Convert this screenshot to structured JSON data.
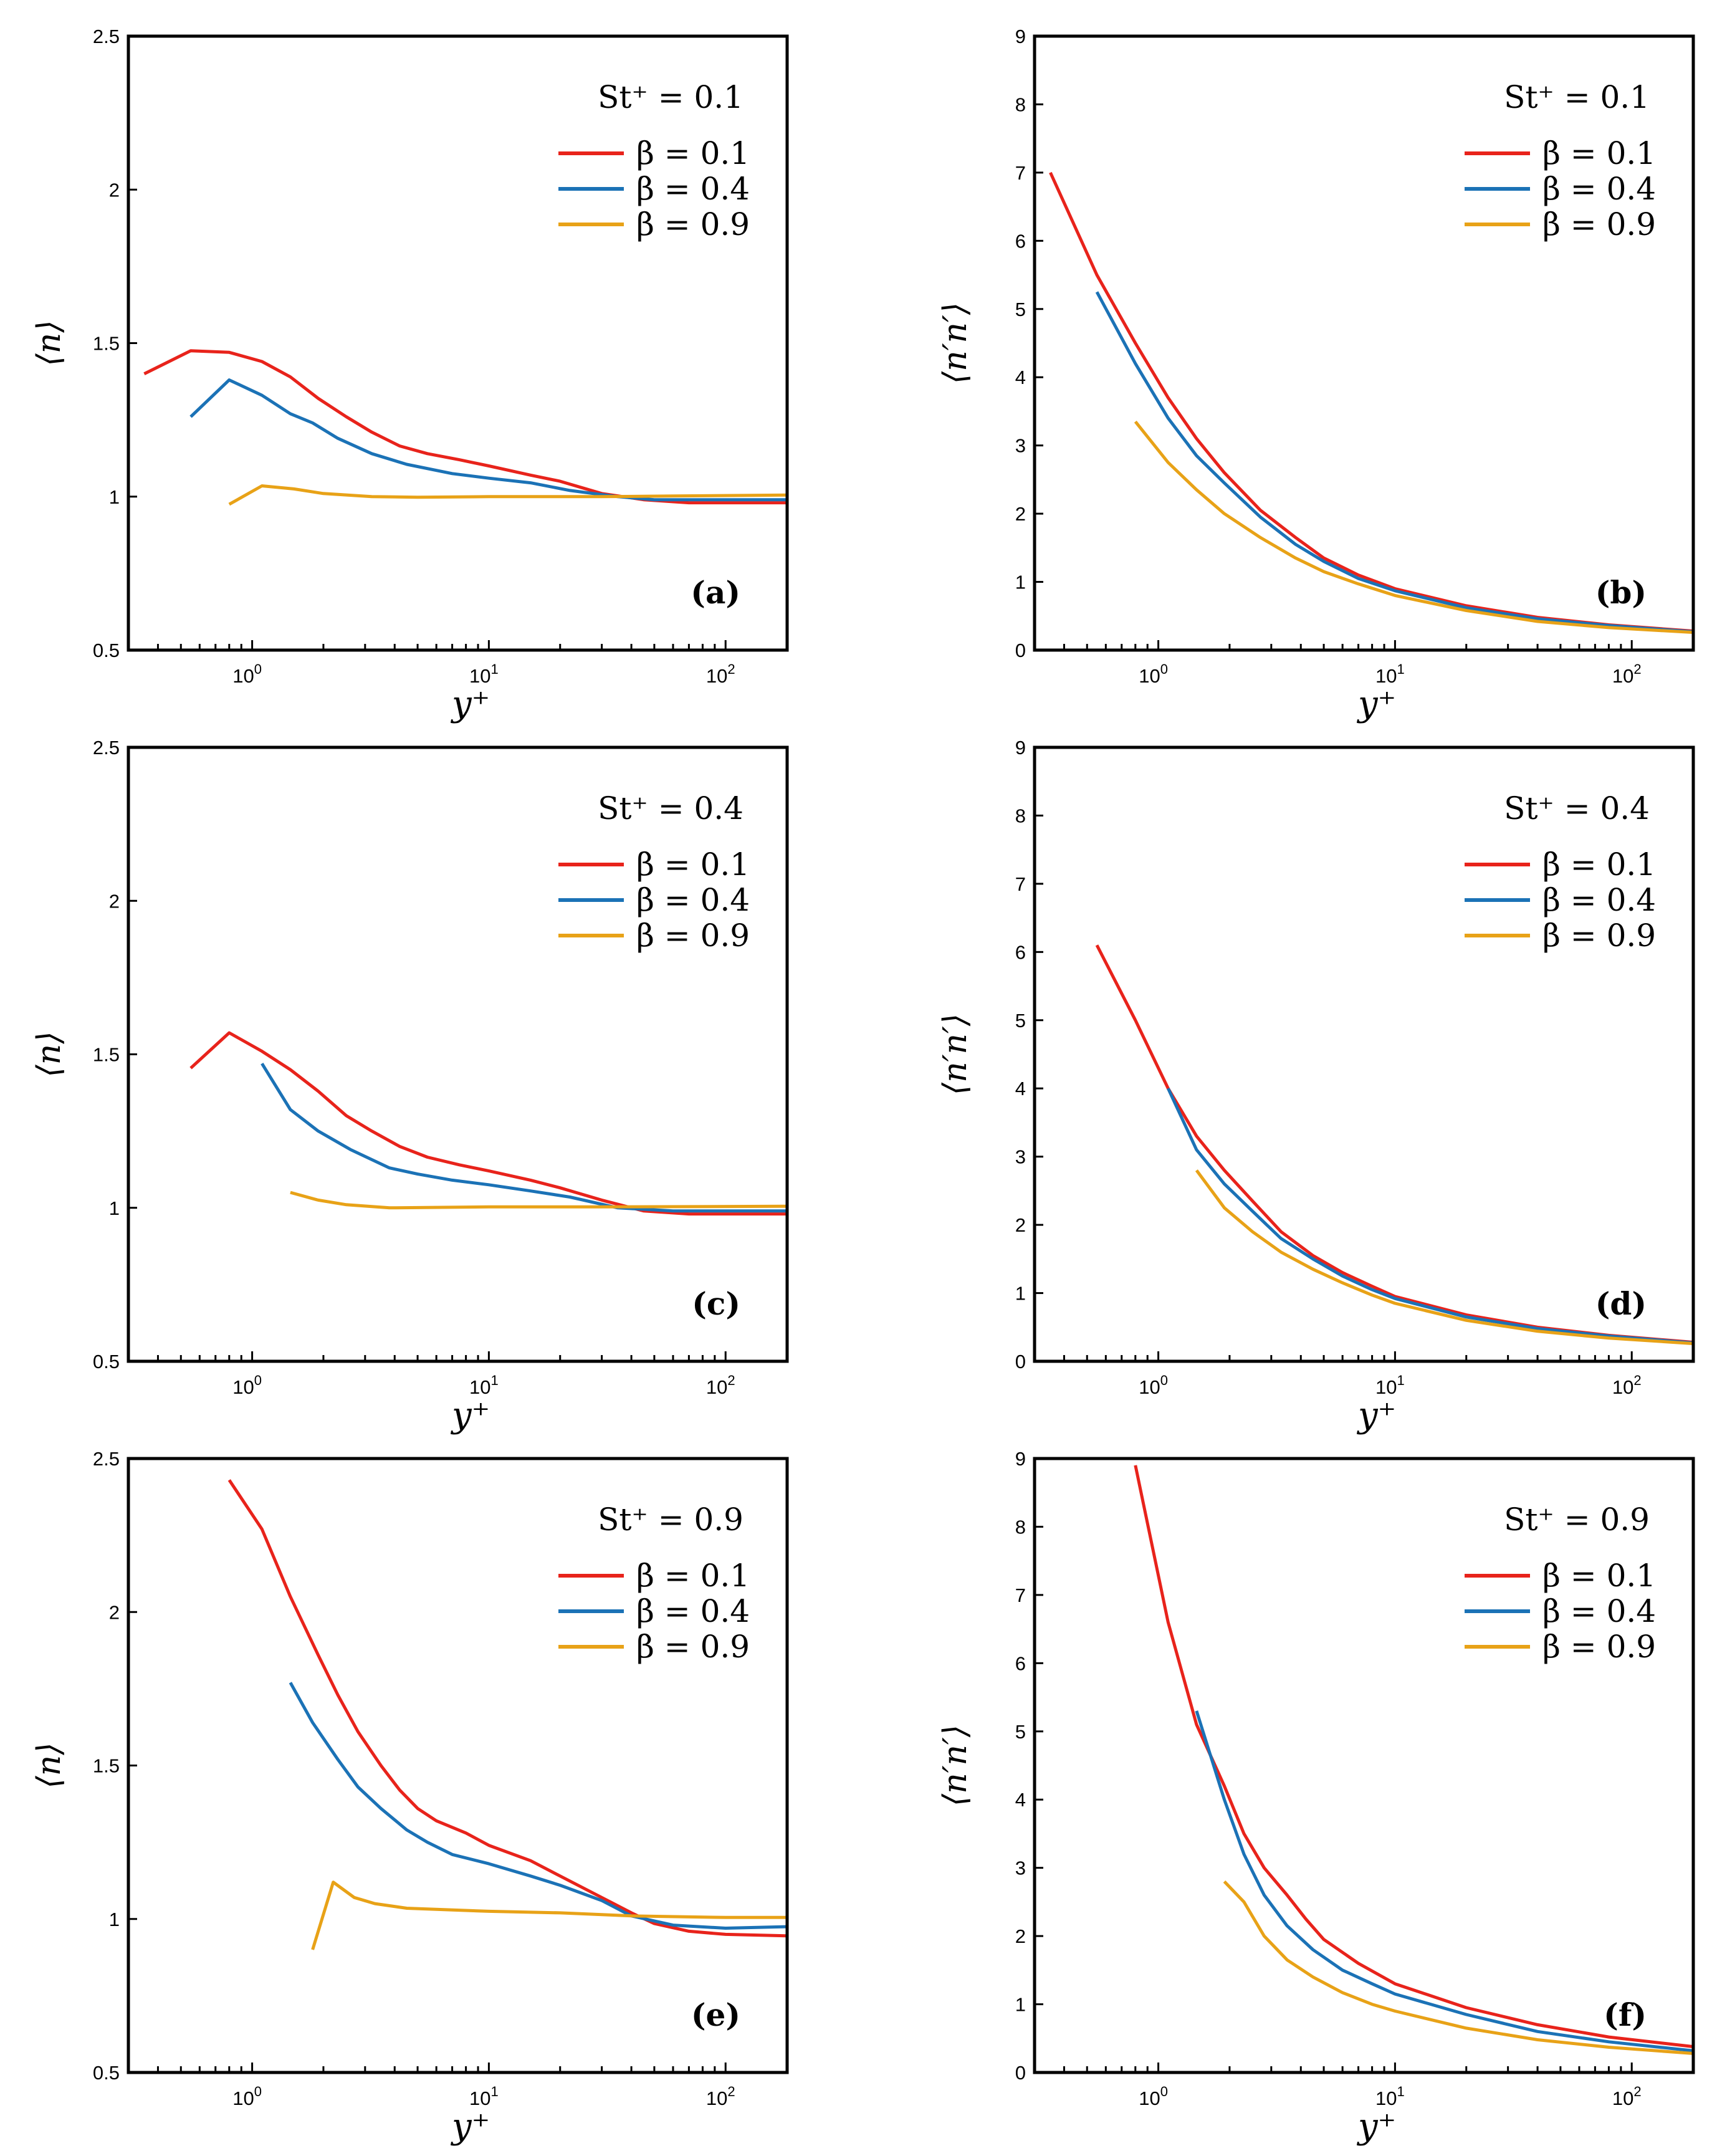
{
  "colors": {
    "beta_0.1": "#e8231b",
    "beta_0.4": "#1b72b6",
    "beta_0.9": "#e8a217"
  },
  "chart_data": [
    {
      "type": "line",
      "panel_label": "(a)",
      "annotation": "St⁺ = 0.1",
      "xlabel": "y⁺",
      "ylabel": "⟨n⟩",
      "xscale": "log",
      "xlim": [
        0.3,
        182
      ],
      "ylim": [
        0.5,
        2.5
      ],
      "yticks": [
        0.5,
        1,
        1.5,
        2,
        2.5
      ],
      "ytick_labels": [
        "0.5",
        "1",
        "1.5",
        "2",
        "2.5"
      ],
      "xticks": [
        1,
        10,
        100
      ],
      "xtick_base": "10",
      "xtick_exponents": [
        "0",
        "1",
        "2"
      ],
      "legend": "top-right",
      "series": [
        {
          "name": "β = 0.1",
          "color_key": "beta_0.1",
          "x": [
            0.35,
            0.55,
            0.8,
            1.1,
            1.45,
            1.9,
            2.5,
            3.2,
            4.2,
            5.5,
            7.5,
            10,
            15,
            20,
            30,
            45,
            70,
            100,
            180
          ],
          "y": [
            1.4,
            1.475,
            1.47,
            1.44,
            1.39,
            1.32,
            1.26,
            1.21,
            1.165,
            1.14,
            1.12,
            1.1,
            1.07,
            1.05,
            1.01,
            0.99,
            0.98,
            0.98,
            0.98
          ]
        },
        {
          "name": "β = 0.4",
          "color_key": "beta_0.4",
          "x": [
            0.55,
            0.8,
            1.1,
            1.45,
            1.8,
            2.3,
            3.2,
            4.5,
            7,
            10,
            15,
            22,
            35,
            50,
            100,
            180
          ],
          "y": [
            1.26,
            1.38,
            1.33,
            1.27,
            1.24,
            1.19,
            1.14,
            1.105,
            1.075,
            1.06,
            1.045,
            1.02,
            1.0,
            0.99,
            0.99,
            0.99
          ]
        },
        {
          "name": "β = 0.9",
          "color_key": "beta_0.9",
          "x": [
            0.8,
            1.1,
            1.5,
            2,
            3.2,
            5,
            10,
            30,
            60,
            180
          ],
          "y": [
            0.975,
            1.035,
            1.025,
            1.01,
            1.0,
            0.998,
            1.0,
            1.0,
            1.002,
            1.005
          ]
        }
      ]
    },
    {
      "type": "line",
      "panel_label": "(b)",
      "annotation": "St⁺ = 0.1",
      "xlabel": "y⁺",
      "ylabel": "⟨n′n′⟩",
      "xscale": "log",
      "xlim": [
        0.3,
        182
      ],
      "ylim": [
        0,
        9
      ],
      "yticks": [
        0,
        1,
        2,
        3,
        4,
        5,
        6,
        7,
        8,
        9
      ],
      "ytick_labels": [
        "0",
        "1",
        "2",
        "3",
        "4",
        "5",
        "6",
        "7",
        "8",
        "9"
      ],
      "xticks": [
        1,
        10,
        100
      ],
      "xtick_base": "10",
      "xtick_exponents": [
        "0",
        "1",
        "2"
      ],
      "legend": "top-right",
      "series": [
        {
          "name": "β = 0.1",
          "color_key": "beta_0.1",
          "x": [
            0.35,
            0.55,
            0.8,
            1.1,
            1.45,
            1.9,
            2.7,
            3.8,
            5,
            7,
            10,
            20,
            40,
            80,
            180
          ],
          "y": [
            7.0,
            5.5,
            4.5,
            3.7,
            3.1,
            2.6,
            2.05,
            1.65,
            1.35,
            1.1,
            0.9,
            0.65,
            0.48,
            0.37,
            0.28
          ]
        },
        {
          "name": "β = 0.4",
          "color_key": "beta_0.4",
          "x": [
            0.55,
            0.8,
            1.1,
            1.45,
            1.9,
            2.7,
            3.8,
            5,
            7,
            10,
            20,
            40,
            80,
            180
          ],
          "y": [
            5.25,
            4.2,
            3.4,
            2.85,
            2.45,
            1.95,
            1.55,
            1.3,
            1.05,
            0.87,
            0.62,
            0.46,
            0.36,
            0.27
          ]
        },
        {
          "name": "β = 0.9",
          "color_key": "beta_0.9",
          "x": [
            0.8,
            1.1,
            1.45,
            1.9,
            2.7,
            3.8,
            5,
            7,
            10,
            20,
            40,
            80,
            180
          ],
          "y": [
            3.35,
            2.75,
            2.35,
            2.0,
            1.65,
            1.35,
            1.15,
            0.97,
            0.8,
            0.58,
            0.42,
            0.33,
            0.26
          ]
        }
      ]
    },
    {
      "type": "line",
      "panel_label": "(c)",
      "annotation": "St⁺ = 0.4",
      "xlabel": "y⁺",
      "ylabel": "⟨n⟩",
      "xscale": "log",
      "xlim": [
        0.3,
        182
      ],
      "ylim": [
        0.5,
        2.5
      ],
      "yticks": [
        0.5,
        1,
        1.5,
        2,
        2.5
      ],
      "ytick_labels": [
        "0.5",
        "1",
        "1.5",
        "2",
        "2.5"
      ],
      "xticks": [
        1,
        10,
        100
      ],
      "xtick_base": "10",
      "xtick_exponents": [
        "0",
        "1",
        "2"
      ],
      "legend": "top-right",
      "series": [
        {
          "name": "β = 0.1",
          "color_key": "beta_0.1",
          "x": [
            0.55,
            0.8,
            1.1,
            1.45,
            1.9,
            2.5,
            3.2,
            4.2,
            5.5,
            7.5,
            10,
            15,
            20,
            30,
            45,
            70,
            180
          ],
          "y": [
            1.455,
            1.57,
            1.51,
            1.45,
            1.38,
            1.3,
            1.25,
            1.2,
            1.165,
            1.14,
            1.12,
            1.09,
            1.065,
            1.025,
            0.99,
            0.98,
            0.98
          ]
        },
        {
          "name": "β = 0.4",
          "color_key": "beta_0.4",
          "x": [
            1.1,
            1.45,
            1.9,
            2.6,
            3.8,
            5,
            7,
            10,
            15,
            22,
            35,
            60,
            180
          ],
          "y": [
            1.47,
            1.32,
            1.25,
            1.19,
            1.13,
            1.11,
            1.09,
            1.075,
            1.055,
            1.035,
            1.0,
            0.99,
            0.99
          ]
        },
        {
          "name": "β = 0.9",
          "color_key": "beta_0.9",
          "x": [
            1.45,
            1.9,
            2.5,
            3.8,
            10,
            30,
            180
          ],
          "y": [
            1.05,
            1.025,
            1.01,
            1.0,
            1.003,
            1.003,
            1.005
          ]
        }
      ]
    },
    {
      "type": "line",
      "panel_label": "(d)",
      "annotation": "St⁺ = 0.4",
      "xlabel": "y⁺",
      "ylabel": "⟨n′n′⟩",
      "xscale": "log",
      "xlim": [
        0.3,
        182
      ],
      "ylim": [
        0,
        9
      ],
      "yticks": [
        0,
        1,
        2,
        3,
        4,
        5,
        6,
        7,
        8,
        9
      ],
      "ytick_labels": [
        "0",
        "1",
        "2",
        "3",
        "4",
        "5",
        "6",
        "7",
        "8",
        "9"
      ],
      "xticks": [
        1,
        10,
        100
      ],
      "xtick_base": "10",
      "xtick_exponents": [
        "0",
        "1",
        "2"
      ],
      "legend": "top-right",
      "series": [
        {
          "name": "β = 0.1",
          "color_key": "beta_0.1",
          "x": [
            0.55,
            0.8,
            1.1,
            1.45,
            1.9,
            2.5,
            3.3,
            4.5,
            6,
            8,
            10,
            20,
            40,
            80,
            180
          ],
          "y": [
            6.1,
            5.0,
            4.0,
            3.3,
            2.8,
            2.35,
            1.9,
            1.55,
            1.3,
            1.1,
            0.95,
            0.68,
            0.5,
            0.38,
            0.28
          ]
        },
        {
          "name": "β = 0.4",
          "color_key": "beta_0.4",
          "x": [
            1.1,
            1.45,
            1.9,
            2.5,
            3.3,
            4.5,
            6,
            8,
            10,
            20,
            40,
            80,
            180
          ],
          "y": [
            4.0,
            3.1,
            2.6,
            2.2,
            1.8,
            1.5,
            1.25,
            1.05,
            0.92,
            0.65,
            0.48,
            0.37,
            0.27
          ]
        },
        {
          "name": "β = 0.9",
          "color_key": "beta_0.9",
          "x": [
            1.45,
            1.9,
            2.5,
            3.3,
            4.5,
            6,
            8,
            10,
            20,
            40,
            80,
            180
          ],
          "y": [
            2.8,
            2.25,
            1.9,
            1.6,
            1.35,
            1.15,
            0.97,
            0.85,
            0.6,
            0.44,
            0.34,
            0.26
          ]
        }
      ]
    },
    {
      "type": "line",
      "panel_label": "(e)",
      "annotation": "St⁺ = 0.9",
      "xlabel": "y⁺",
      "ylabel": "⟨n⟩",
      "xscale": "log",
      "xlim": [
        0.3,
        182
      ],
      "ylim": [
        0.5,
        2.5
      ],
      "yticks": [
        0.5,
        1,
        1.5,
        2,
        2.5
      ],
      "ytick_labels": [
        "0.5",
        "1",
        "1.5",
        "2",
        "2.5"
      ],
      "xticks": [
        1,
        10,
        100
      ],
      "xtick_base": "10",
      "xtick_exponents": [
        "0",
        "1",
        "2"
      ],
      "legend": "top-right",
      "series": [
        {
          "name": "β = 0.1",
          "color_key": "beta_0.1",
          "x": [
            0.8,
            1.1,
            1.45,
            1.9,
            2.3,
            2.8,
            3.5,
            4.2,
            5,
            6,
            8,
            10,
            15,
            20,
            30,
            40,
            50,
            70,
            100,
            180
          ],
          "y": [
            2.43,
            2.27,
            2.05,
            1.86,
            1.73,
            1.61,
            1.5,
            1.42,
            1.36,
            1.32,
            1.28,
            1.24,
            1.19,
            1.14,
            1.07,
            1.02,
            0.985,
            0.96,
            0.95,
            0.945
          ]
        },
        {
          "name": "β = 0.4",
          "color_key": "beta_0.4",
          "x": [
            1.45,
            1.8,
            2.3,
            2.8,
            3.5,
            4.5,
            5.5,
            7,
            10,
            15,
            20,
            30,
            40,
            60,
            100,
            180
          ],
          "y": [
            1.77,
            1.64,
            1.52,
            1.43,
            1.36,
            1.29,
            1.25,
            1.21,
            1.18,
            1.14,
            1.11,
            1.06,
            1.01,
            0.98,
            0.97,
            0.975
          ]
        },
        {
          "name": "β = 0.9",
          "color_key": "beta_0.9",
          "x": [
            1.8,
            2.2,
            2.7,
            3.3,
            4.5,
            10,
            20,
            40,
            100,
            180
          ],
          "y": [
            0.9,
            1.12,
            1.07,
            1.05,
            1.035,
            1.025,
            1.02,
            1.01,
            1.005,
            1.005
          ]
        }
      ]
    },
    {
      "type": "line",
      "panel_label": "(f)",
      "annotation": "St⁺ = 0.9",
      "xlabel": "y⁺",
      "ylabel": "⟨n′n′⟩",
      "xscale": "log",
      "xlim": [
        0.3,
        182
      ],
      "ylim": [
        0,
        9
      ],
      "yticks": [
        0,
        1,
        2,
        3,
        4,
        5,
        6,
        7,
        8,
        9
      ],
      "ytick_labels": [
        "0",
        "1",
        "2",
        "3",
        "4",
        "5",
        "6",
        "7",
        "8",
        "9"
      ],
      "xticks": [
        1,
        10,
        100
      ],
      "xtick_base": "10",
      "xtick_exponents": [
        "0",
        "1",
        "2"
      ],
      "legend": "top-right",
      "series": [
        {
          "name": "β = 0.1",
          "color_key": "beta_0.1",
          "x": [
            0.8,
            1.1,
            1.45,
            1.9,
            2.3,
            2.8,
            3.5,
            4.2,
            5,
            7,
            10,
            20,
            40,
            80,
            180
          ],
          "y": [
            8.9,
            6.6,
            5.1,
            4.2,
            3.5,
            3.0,
            2.6,
            2.25,
            1.95,
            1.6,
            1.3,
            0.95,
            0.7,
            0.52,
            0.38
          ]
        },
        {
          "name": "β = 0.4",
          "color_key": "beta_0.4",
          "x": [
            1.45,
            1.9,
            2.3,
            2.8,
            3.5,
            4.5,
            6,
            8,
            10,
            20,
            40,
            80,
            180
          ],
          "y": [
            5.3,
            4.0,
            3.2,
            2.6,
            2.15,
            1.8,
            1.5,
            1.3,
            1.15,
            0.85,
            0.6,
            0.45,
            0.32
          ]
        },
        {
          "name": "β = 0.9",
          "color_key": "beta_0.9",
          "x": [
            1.9,
            2.3,
            2.8,
            3.5,
            4.5,
            6,
            8,
            10,
            20,
            40,
            80,
            180
          ],
          "y": [
            2.8,
            2.5,
            2.0,
            1.65,
            1.4,
            1.17,
            1.0,
            0.9,
            0.65,
            0.48,
            0.37,
            0.28
          ]
        }
      ]
    }
  ]
}
